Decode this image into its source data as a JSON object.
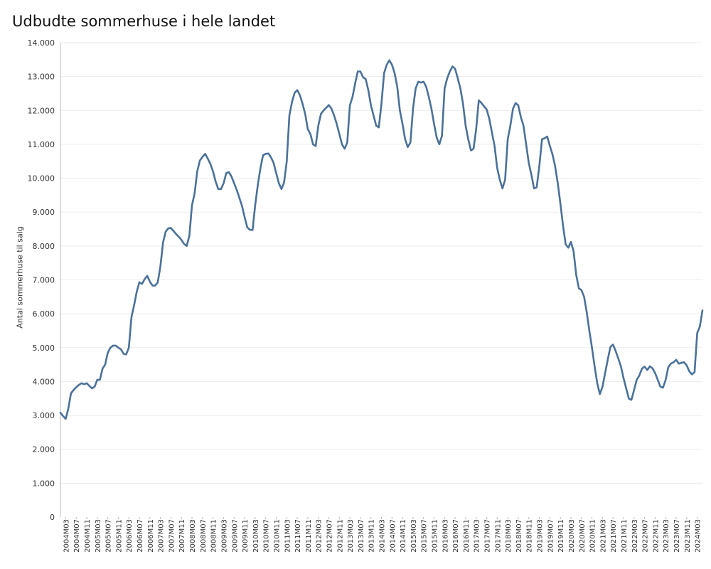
{
  "chart_data": {
    "type": "line",
    "title": "Udbudte sommerhuse i hele landet",
    "ylabel": "Antal sommerhuse til salg",
    "xlabel": "",
    "ylim": [
      0,
      14000
    ],
    "yticks": [
      0,
      1000,
      2000,
      3000,
      4000,
      5000,
      6000,
      7000,
      8000,
      9000,
      10000,
      11000,
      12000,
      13000,
      14000
    ],
    "ytick_labels": [
      "0",
      "1.000",
      "2.000",
      "3.000",
      "4.000",
      "5.000",
      "6.000",
      "7.000",
      "8.000",
      "9.000",
      "10.000",
      "11.000",
      "12.000",
      "13.000",
      "14.000"
    ],
    "xtick_labels": [
      "2004M03",
      "2004M07",
      "2004M11",
      "2005M03",
      "2005M07",
      "2005M11",
      "2006M03",
      "2006M07",
      "2006M11",
      "2007M03",
      "2007M07",
      "2007M11",
      "2008M03",
      "2008M07",
      "2008M11",
      "2009M03",
      "2009M07",
      "2009M11",
      "2010M03",
      "2010M07",
      "2010M11",
      "2011M03",
      "2011M07",
      "2011M11",
      "2012M03",
      "2012M07",
      "2012M11",
      "2013M03",
      "2013M07",
      "2013M11",
      "2014M03",
      "2014M07",
      "2014M11",
      "2015M03",
      "2015M07",
      "2015M11",
      "2016M03",
      "2016M07",
      "2016M11",
      "2017M03",
      "2017M07",
      "2017M11",
      "2018M03",
      "2018M07",
      "2018M11",
      "2019M03",
      "2019M07",
      "2019M11",
      "2020M03",
      "2020M07",
      "2020M11",
      "2021M03",
      "2021M07",
      "2021M11",
      "2022M03",
      "2022M07",
      "2022M11",
      "2023M03",
      "2023M07",
      "2023M11",
      "2024M03"
    ],
    "grid": true,
    "series": [
      {
        "color": "#4a7199",
        "points": [
          [
            "2004M01",
            3080
          ],
          [
            "2004M02",
            2980
          ],
          [
            "2004M03",
            2900
          ],
          [
            "2004M04",
            3200
          ],
          [
            "2004M05",
            3650
          ],
          [
            "2004M06",
            3750
          ],
          [
            "2004M07",
            3830
          ],
          [
            "2004M08",
            3900
          ],
          [
            "2004M09",
            3950
          ],
          [
            "2004M10",
            3920
          ],
          [
            "2004M11",
            3950
          ],
          [
            "2004M12",
            3870
          ],
          [
            "2005M01",
            3800
          ],
          [
            "2005M02",
            3850
          ],
          [
            "2005M03",
            4050
          ],
          [
            "2005M04",
            4050
          ],
          [
            "2005M05",
            4380
          ],
          [
            "2005M06",
            4500
          ],
          [
            "2005M07",
            4850
          ],
          [
            "2005M08",
            5000
          ],
          [
            "2005M09",
            5060
          ],
          [
            "2005M10",
            5060
          ],
          [
            "2005M11",
            5000
          ],
          [
            "2005M12",
            4950
          ],
          [
            "2006M01",
            4820
          ],
          [
            "2006M02",
            4800
          ],
          [
            "2006M03",
            5000
          ],
          [
            "2006M04",
            5900
          ],
          [
            "2006M05",
            6250
          ],
          [
            "2006M06",
            6650
          ],
          [
            "2006M07",
            6930
          ],
          [
            "2006M08",
            6880
          ],
          [
            "2006M09",
            7020
          ],
          [
            "2006M10",
            7120
          ],
          [
            "2006M11",
            6950
          ],
          [
            "2006M12",
            6830
          ],
          [
            "2007M01",
            6830
          ],
          [
            "2007M02",
            6930
          ],
          [
            "2007M03",
            7400
          ],
          [
            "2007M04",
            8100
          ],
          [
            "2007M05",
            8420
          ],
          [
            "2007M06",
            8520
          ],
          [
            "2007M07",
            8530
          ],
          [
            "2007M08",
            8440
          ],
          [
            "2007M09",
            8350
          ],
          [
            "2007M10",
            8270
          ],
          [
            "2007M11",
            8180
          ],
          [
            "2007M12",
            8060
          ],
          [
            "2008M01",
            8000
          ],
          [
            "2008M02",
            8300
          ],
          [
            "2008M03",
            9200
          ],
          [
            "2008M04",
            9550
          ],
          [
            "2008M05",
            10200
          ],
          [
            "2008M06",
            10520
          ],
          [
            "2008M07",
            10630
          ],
          [
            "2008M08",
            10720
          ],
          [
            "2008M09",
            10580
          ],
          [
            "2008M10",
            10420
          ],
          [
            "2008M11",
            10200
          ],
          [
            "2008M12",
            9900
          ],
          [
            "2009M01",
            9680
          ],
          [
            "2009M02",
            9680
          ],
          [
            "2009M03",
            9850
          ],
          [
            "2009M04",
            10150
          ],
          [
            "2009M05",
            10180
          ],
          [
            "2009M06",
            10050
          ],
          [
            "2009M07",
            9850
          ],
          [
            "2009M08",
            9650
          ],
          [
            "2009M09",
            9420
          ],
          [
            "2009M10",
            9180
          ],
          [
            "2009M11",
            8850
          ],
          [
            "2009M12",
            8550
          ],
          [
            "2010M01",
            8480
          ],
          [
            "2010M02",
            8470
          ],
          [
            "2010M03",
            9200
          ],
          [
            "2010M04",
            9800
          ],
          [
            "2010M05",
            10300
          ],
          [
            "2010M06",
            10680
          ],
          [
            "2010M07",
            10720
          ],
          [
            "2010M08",
            10730
          ],
          [
            "2010M09",
            10620
          ],
          [
            "2010M10",
            10450
          ],
          [
            "2010M11",
            10150
          ],
          [
            "2010M12",
            9850
          ],
          [
            "2011M01",
            9680
          ],
          [
            "2011M02",
            9880
          ],
          [
            "2011M03",
            10500
          ],
          [
            "2011M04",
            11850
          ],
          [
            "2011M05",
            12250
          ],
          [
            "2011M06",
            12520
          ],
          [
            "2011M07",
            12600
          ],
          [
            "2011M08",
            12450
          ],
          [
            "2011M09",
            12200
          ],
          [
            "2011M10",
            11900
          ],
          [
            "2011M11",
            11450
          ],
          [
            "2011M12",
            11300
          ],
          [
            "2012M01",
            11000
          ],
          [
            "2012M02",
            10950
          ],
          [
            "2012M03",
            11550
          ],
          [
            "2012M04",
            11900
          ],
          [
            "2012M05",
            12000
          ],
          [
            "2012M06",
            12080
          ],
          [
            "2012M07",
            12160
          ],
          [
            "2012M08",
            12050
          ],
          [
            "2012M09",
            11850
          ],
          [
            "2012M10",
            11600
          ],
          [
            "2012M11",
            11300
          ],
          [
            "2012M12",
            11000
          ],
          [
            "2013M01",
            10870
          ],
          [
            "2013M02",
            11050
          ],
          [
            "2013M03",
            12150
          ],
          [
            "2013M04",
            12400
          ],
          [
            "2013M05",
            12800
          ],
          [
            "2013M06",
            13150
          ],
          [
            "2013M07",
            13150
          ],
          [
            "2013M08",
            12980
          ],
          [
            "2013M09",
            12930
          ],
          [
            "2013M10",
            12600
          ],
          [
            "2013M11",
            12150
          ],
          [
            "2013M12",
            11850
          ],
          [
            "2014M01",
            11550
          ],
          [
            "2014M02",
            11500
          ],
          [
            "2014M03",
            12200
          ],
          [
            "2014M04",
            13100
          ],
          [
            "2014M05",
            13350
          ],
          [
            "2014M06",
            13480
          ],
          [
            "2014M07",
            13350
          ],
          [
            "2014M08",
            13100
          ],
          [
            "2014M09",
            12700
          ],
          [
            "2014M10",
            12000
          ],
          [
            "2014M11",
            11600
          ],
          [
            "2014M12",
            11150
          ],
          [
            "2015M01",
            10920
          ],
          [
            "2015M02",
            11050
          ],
          [
            "2015M03",
            12050
          ],
          [
            "2015M04",
            12650
          ],
          [
            "2015M05",
            12850
          ],
          [
            "2015M06",
            12820
          ],
          [
            "2015M07",
            12850
          ],
          [
            "2015M08",
            12700
          ],
          [
            "2015M09",
            12400
          ],
          [
            "2015M10",
            12050
          ],
          [
            "2015M11",
            11600
          ],
          [
            "2015M12",
            11200
          ],
          [
            "2016M01",
            11000
          ],
          [
            "2016M02",
            11250
          ],
          [
            "2016M03",
            12650
          ],
          [
            "2016M04",
            12950
          ],
          [
            "2016M05",
            13150
          ],
          [
            "2016M06",
            13300
          ],
          [
            "2016M07",
            13230
          ],
          [
            "2016M08",
            12950
          ],
          [
            "2016M09",
            12650
          ],
          [
            "2016M10",
            12200
          ],
          [
            "2016M11",
            11550
          ],
          [
            "2016M12",
            11150
          ],
          [
            "2017M01",
            10820
          ],
          [
            "2017M02",
            10870
          ],
          [
            "2017M03",
            11450
          ],
          [
            "2017M04",
            12300
          ],
          [
            "2017M05",
            12220
          ],
          [
            "2017M06",
            12120
          ],
          [
            "2017M07",
            12030
          ],
          [
            "2017M08",
            11750
          ],
          [
            "2017M09",
            11350
          ],
          [
            "2017M10",
            10950
          ],
          [
            "2017M11",
            10300
          ],
          [
            "2017M12",
            9950
          ],
          [
            "2018M01",
            9700
          ],
          [
            "2018M02",
            9950
          ],
          [
            "2018M03",
            11150
          ],
          [
            "2018M04",
            11550
          ],
          [
            "2018M05",
            12050
          ],
          [
            "2018M06",
            12220
          ],
          [
            "2018M07",
            12150
          ],
          [
            "2018M08",
            11800
          ],
          [
            "2018M09",
            11550
          ],
          [
            "2018M10",
            11000
          ],
          [
            "2018M11",
            10450
          ],
          [
            "2018M12",
            10100
          ],
          [
            "2019M01",
            9700
          ],
          [
            "2019M02",
            9730
          ],
          [
            "2019M03",
            10350
          ],
          [
            "2019M04",
            11150
          ],
          [
            "2019M05",
            11180
          ],
          [
            "2019M06",
            11230
          ],
          [
            "2019M07",
            10950
          ],
          [
            "2019M08",
            10700
          ],
          [
            "2019M09",
            10350
          ],
          [
            "2019M10",
            9850
          ],
          [
            "2019M11",
            9250
          ],
          [
            "2019M12",
            8600
          ],
          [
            "2020M01",
            8050
          ],
          [
            "2020M02",
            7950
          ],
          [
            "2020M03",
            8120
          ],
          [
            "2020M04",
            7850
          ],
          [
            "2020M05",
            7150
          ],
          [
            "2020M06",
            6750
          ],
          [
            "2020M07",
            6700
          ],
          [
            "2020M08",
            6500
          ],
          [
            "2020M09",
            6050
          ],
          [
            "2020M10",
            5500
          ],
          [
            "2020M11",
            5000
          ],
          [
            "2020M12",
            4450
          ],
          [
            "2021M01",
            3950
          ],
          [
            "2021M02",
            3630
          ],
          [
            "2021M03",
            3850
          ],
          [
            "2021M04",
            4250
          ],
          [
            "2021M05",
            4650
          ],
          [
            "2021M06",
            5020
          ],
          [
            "2021M07",
            5090
          ],
          [
            "2021M08",
            4900
          ],
          [
            "2021M09",
            4680
          ],
          [
            "2021M10",
            4450
          ],
          [
            "2021M11",
            4100
          ],
          [
            "2021M12",
            3800
          ],
          [
            "2022M01",
            3500
          ],
          [
            "2022M02",
            3460
          ],
          [
            "2022M03",
            3750
          ],
          [
            "2022M04",
            4050
          ],
          [
            "2022M05",
            4180
          ],
          [
            "2022M06",
            4380
          ],
          [
            "2022M07",
            4440
          ],
          [
            "2022M08",
            4340
          ],
          [
            "2022M09",
            4450
          ],
          [
            "2022M10",
            4390
          ],
          [
            "2022M11",
            4250
          ],
          [
            "2022M12",
            4050
          ],
          [
            "2023M01",
            3850
          ],
          [
            "2023M02",
            3820
          ],
          [
            "2023M03",
            4050
          ],
          [
            "2023M04",
            4420
          ],
          [
            "2023M05",
            4530
          ],
          [
            "2023M06",
            4570
          ],
          [
            "2023M07",
            4640
          ],
          [
            "2023M08",
            4530
          ],
          [
            "2023M09",
            4550
          ],
          [
            "2023M10",
            4570
          ],
          [
            "2023M11",
            4480
          ],
          [
            "2023M12",
            4300
          ],
          [
            "2024M01",
            4210
          ],
          [
            "2024M02",
            4280
          ],
          [
            "2024M03",
            5430
          ],
          [
            "2024M04",
            5620
          ],
          [
            "2024M05",
            6100
          ]
        ]
      }
    ]
  }
}
